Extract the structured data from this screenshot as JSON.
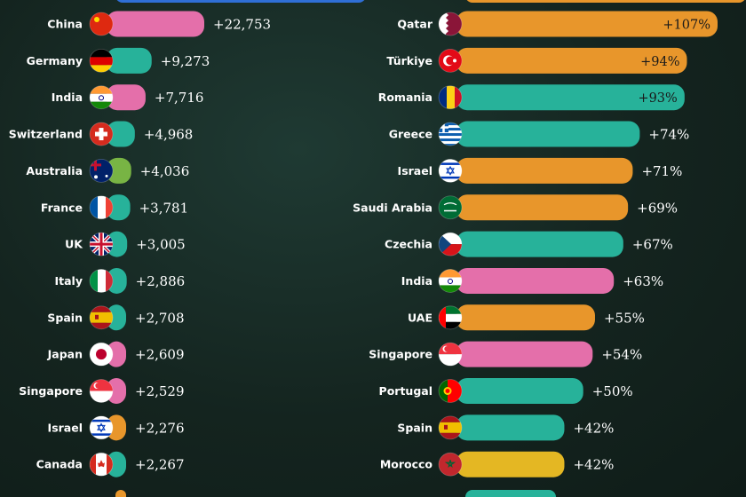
{
  "chart_data": [
    {
      "type": "bar",
      "orientation": "horizontal",
      "categories": [
        "China",
        "Germany",
        "India",
        "Switzerland",
        "Australia",
        "France",
        "UK",
        "Italy",
        "Spain",
        "Japan",
        "Singapore",
        "Israel",
        "Canada"
      ],
      "values": [
        22753,
        9273,
        7716,
        4968,
        4036,
        3781,
        3005,
        2886,
        2708,
        2609,
        2529,
        2276,
        2267
      ],
      "value_labels": [
        "+22,753",
        "+9,273",
        "+7,716",
        "+4,968",
        "+4,036",
        "+3,781",
        "+3,005",
        "+2,886",
        "+2,708",
        "+2,609",
        "+2,529",
        "+2,276",
        "+2,267"
      ],
      "bar_colors": [
        "#e46faa",
        "#27b29a",
        "#e46faa",
        "#27b29a",
        "#78b444",
        "#27b29a",
        "#27b29a",
        "#27b29a",
        "#27b29a",
        "#e46faa",
        "#e46faa",
        "#e8962b",
        "#27b29a"
      ],
      "flags": [
        "china-flag-icon",
        "germany-flag-icon",
        "india-flag-icon",
        "switzerland-flag-icon",
        "australia-flag-icon",
        "france-flag-icon",
        "uk-flag-icon",
        "italy-flag-icon",
        "spain-flag-icon",
        "japan-flag-icon",
        "singapore-flag-icon",
        "israel-flag-icon",
        "canada-flag-icon"
      ]
    },
    {
      "type": "bar",
      "orientation": "horizontal",
      "categories": [
        "Qatar",
        "Türkiye",
        "Romania",
        "Greece",
        "Israel",
        "Saudi Arabia",
        "Czechia",
        "India",
        "UAE",
        "Singapore",
        "Portugal",
        "Spain",
        "Morocco"
      ],
      "values": [
        107,
        94,
        93,
        74,
        71,
        69,
        67,
        63,
        55,
        54,
        50,
        42,
        42
      ],
      "value_labels": [
        "+107%",
        "+94%",
        "+93%",
        "+74%",
        "+71%",
        "+69%",
        "+67%",
        "+63%",
        "+55%",
        "+54%",
        "+50%",
        "+42%",
        "+42%"
      ],
      "bar_colors": [
        "#e8962b",
        "#e8962b",
        "#27b29a",
        "#27b29a",
        "#e8962b",
        "#e8962b",
        "#27b29a",
        "#e46faa",
        "#e8962b",
        "#e46faa",
        "#27b29a",
        "#27b29a",
        "#e4b723"
      ],
      "flags": [
        "qatar-flag-icon",
        "turkiye-flag-icon",
        "romania-flag-icon",
        "greece-flag-icon",
        "israel-flag-icon",
        "saudi-arabia-flag-icon",
        "czechia-flag-icon",
        "india-flag-icon",
        "uae-flag-icon",
        "singapore-flag-icon",
        "portugal-flag-icon",
        "spain-flag-icon",
        "morocco-flag-icon"
      ]
    }
  ]
}
